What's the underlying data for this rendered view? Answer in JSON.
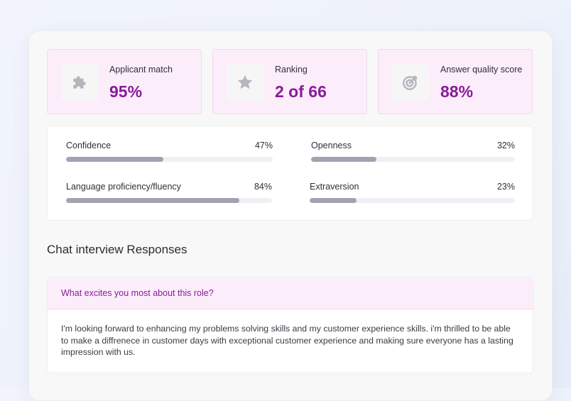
{
  "stats": [
    {
      "label": "Applicant match",
      "value": "95%",
      "icon": "puzzle-icon"
    },
    {
      "label": "Ranking",
      "value": "2 of 66",
      "icon": "star-icon"
    },
    {
      "label": "Answer quality score",
      "value": "88%",
      "icon": "target-icon"
    }
  ],
  "metrics": [
    {
      "name": "Confidence",
      "percent_label": "47%",
      "value": 47
    },
    {
      "name": "Openness",
      "percent_label": "32%",
      "value": 32
    },
    {
      "name": "Language proficiency/fluency",
      "percent_label": "84%",
      "value": 84
    },
    {
      "name": "Extraversion",
      "percent_label": "23%",
      "value": 23
    }
  ],
  "section_title": "Chat interview Responses",
  "responses": [
    {
      "question": "What excites you most about this role?",
      "answer": "I'm looking forward to enhancing my problems solving skills and my customer experience skills. i'm thrilled to be able to make a diffrenece in customer days with exceptional customer experience and making sure everyone has a lasting impression with us."
    }
  ],
  "colors": {
    "accent": "#8a1a9b",
    "card_tint": "#fbeefa",
    "bar_fill": "#a4a2b2",
    "bar_track": "#f0f0f4"
  }
}
